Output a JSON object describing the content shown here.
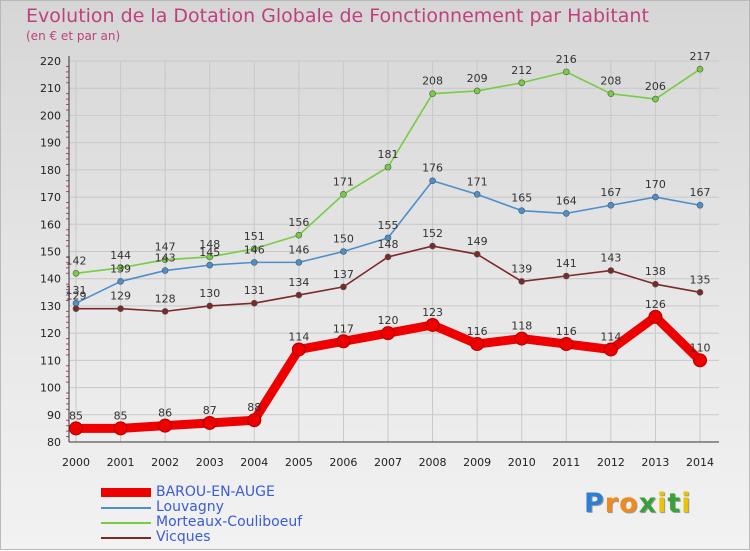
{
  "chart_data": {
    "type": "line",
    "title": "Evolution de la Dotation Globale de Fonctionnement par Habitant",
    "subtitle": "(en € et par an)",
    "x": [
      2000,
      2001,
      2002,
      2003,
      2004,
      2005,
      2006,
      2007,
      2008,
      2009,
      2010,
      2011,
      2012,
      2013,
      2014
    ],
    "ylim": [
      80,
      220
    ],
    "yticks": [
      80,
      90,
      100,
      110,
      120,
      130,
      140,
      150,
      160,
      170,
      180,
      190,
      200,
      210,
      220
    ],
    "grid": true,
    "series": [
      {
        "name": "Morteaux-Couliboeuf",
        "color": "#77cc44",
        "values": [
          142,
          144,
          147,
          148,
          151,
          156,
          171,
          181,
          208,
          209,
          212,
          216,
          208,
          206,
          217
        ]
      },
      {
        "name": "Louvagny",
        "color": "#4d8fcb",
        "values": [
          131,
          139,
          143,
          145,
          146,
          146,
          150,
          155,
          176,
          171,
          165,
          164,
          167,
          170,
          167
        ]
      },
      {
        "name": "Vicques",
        "color": "#7a2a2a",
        "values": [
          129,
          129,
          128,
          130,
          131,
          134,
          137,
          148,
          152,
          149,
          139,
          141,
          143,
          138,
          135
        ]
      },
      {
        "name": "BAROU-EN-AUGE",
        "color": "#ee0000",
        "values": [
          85,
          85,
          86,
          87,
          88,
          114,
          117,
          120,
          123,
          116,
          118,
          116,
          114,
          126,
          110
        ]
      }
    ],
    "point_labels": {
      "Morteaux-Couliboeuf": [
        "142",
        "144",
        "147",
        "148",
        "151",
        "156",
        "171",
        "181",
        "208",
        "209",
        "212",
        "216",
        "208",
        "206",
        "217"
      ],
      "Louvagny": [
        "131",
        "139",
        "143",
        "145",
        "146",
        "146",
        "150",
        "155",
        "176",
        "171",
        "165",
        "164",
        "167",
        "170",
        "167"
      ],
      "Vicques": [
        "129",
        "129",
        "128",
        "130",
        "131",
        "134",
        "137",
        "148",
        "152",
        "149",
        "139",
        "141",
        "143",
        "138",
        "135"
      ],
      "BAROU-EN-AUGE": [
        "85",
        "85",
        "86",
        "87",
        "88",
        "114",
        "117",
        "120",
        "123",
        "116",
        "118",
        "116",
        "114",
        "126",
        "110"
      ]
    },
    "legend": {
      "position": "bottom-left",
      "order": [
        "BAROU-EN-AUGE",
        "Louvagny",
        "Morteaux-Couliboeuf",
        "Vicques"
      ]
    }
  },
  "brand": {
    "letters": [
      "P",
      "r",
      "o",
      "x",
      "i",
      "t",
      "i"
    ],
    "colors": [
      "#2f7fd0",
      "#f08a1c",
      "#f08a1c",
      "#3aa03a",
      "#e8c300",
      "#3aa03a",
      "#e8c300"
    ]
  }
}
